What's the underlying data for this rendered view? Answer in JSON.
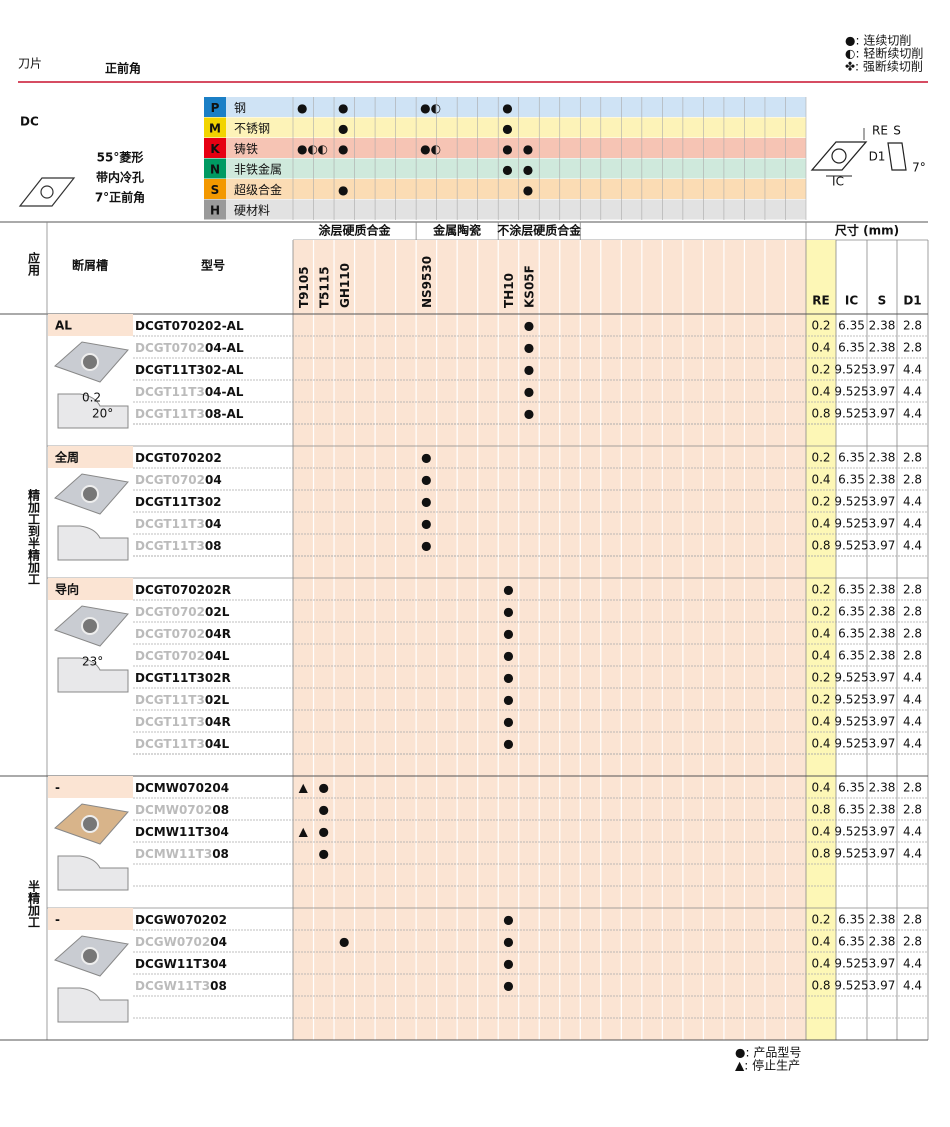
{
  "header": {
    "title": "刀片",
    "subtitle": "正前角",
    "legend": [
      "●: 连续切削",
      "◐: 轻断续切削",
      "✤: 强断续切削"
    ]
  },
  "product": {
    "code": "DC",
    "description": [
      "55°菱形",
      "带内冷孔",
      "7°正前角"
    ],
    "diagram_labels": [
      "RE",
      "S",
      "D1",
      "IC",
      "7°"
    ]
  },
  "grade_groups": [
    {
      "label": "涂层硬质合金",
      "columns": [
        "T9105",
        "T5115",
        "GH110",
        null,
        null,
        null
      ]
    },
    {
      "label": "金属陶瓷",
      "columns": [
        "NS9530",
        null,
        null,
        null
      ]
    },
    {
      "label": "不涂层硬质合金",
      "columns": [
        "TH10",
        "KS05F",
        null,
        null
      ]
    },
    {
      "columns": [
        null,
        null,
        null,
        null,
        null,
        null,
        null,
        null,
        null,
        null,
        null
      ]
    }
  ],
  "materials": [
    {
      "code": "P",
      "name": "钢",
      "color": "#1b7fc6",
      "bg": "#cfe3f5",
      "marks": {
        "T9105": "●",
        "GH110": "●",
        "NS9530": "●◐",
        "TH10": "●"
      }
    },
    {
      "code": "M",
      "name": "不锈钢",
      "color": "#f2d400",
      "bg": "#fdf3b8",
      "marks": {
        "GH110": "●",
        "TH10": "●"
      }
    },
    {
      "code": "K",
      "name": "铸铁",
      "color": "#e60012",
      "bg": "#f6c4b4",
      "marks": {
        "T9105": "●◐",
        "T5115": "◐",
        "GH110": "●",
        "NS9530": "●◐",
        "TH10": "●",
        "KS05F": "●"
      }
    },
    {
      "code": "N",
      "name": "非铁金属",
      "color": "#009a62",
      "bg": "#cfe9dc",
      "marks": {
        "TH10": "●",
        "KS05F": "●"
      }
    },
    {
      "code": "S",
      "name": "超级合金",
      "color": "#f39800",
      "bg": "#fbdcb4",
      "marks": {
        "GH110": "●",
        "KS05F": "●"
      }
    },
    {
      "code": "H",
      "name": "硬材料",
      "color": "#9a9a9a",
      "bg": "#e2e2e2",
      "marks": {}
    }
  ],
  "table": {
    "columns": {
      "application": "应用",
      "chipbreaker": "断屑槽",
      "model": "型号",
      "dimensions": "尺寸 (mm)",
      "dims": [
        "RE",
        "IC",
        "S",
        "D1"
      ]
    },
    "sections": [
      {
        "label": "精加工到半精加工",
        "groups": [
          {
            "chipbreaker": "AL",
            "figure_labels": [
              "0.2",
              "20°"
            ],
            "rows": [
              {
                "model": [
                  "DCGT070202-AL"
                ],
                "marks": {
                  "KS05F": "●"
                },
                "dims": [
                  0.2,
                  6.35,
                  2.38,
                  2.8
                ]
              },
              {
                "model": [
                  "DCGT0702",
                  "04-AL"
                ],
                "marks": {
                  "KS05F": "●"
                },
                "dims": [
                  0.4,
                  6.35,
                  2.38,
                  2.8
                ]
              },
              {
                "model": [
                  "DCGT11T302-AL"
                ],
                "marks": {
                  "KS05F": "●"
                },
                "dims": [
                  0.2,
                  9.525,
                  3.97,
                  4.4
                ]
              },
              {
                "model": [
                  "DCGT11T3",
                  "04-AL"
                ],
                "marks": {
                  "KS05F": "●"
                },
                "dims": [
                  0.4,
                  9.525,
                  3.97,
                  4.4
                ]
              },
              {
                "model": [
                  "DCGT11T3",
                  "08-AL"
                ],
                "marks": {
                  "KS05F": "●"
                },
                "dims": [
                  0.8,
                  9.525,
                  3.97,
                  4.4
                ]
              }
            ]
          },
          {
            "chipbreaker": "全周",
            "rows": [
              {
                "model": [
                  "DCGT070202"
                ],
                "marks": {
                  "NS9530": "●"
                },
                "dims": [
                  0.2,
                  6.35,
                  2.38,
                  2.8
                ]
              },
              {
                "model": [
                  "DCGT0702",
                  "04"
                ],
                "marks": {
                  "NS9530": "●"
                },
                "dims": [
                  0.4,
                  6.35,
                  2.38,
                  2.8
                ]
              },
              {
                "model": [
                  "DCGT11T302"
                ],
                "marks": {
                  "NS9530": "●"
                },
                "dims": [
                  0.2,
                  9.525,
                  3.97,
                  4.4
                ]
              },
              {
                "model": [
                  "DCGT11T3",
                  "04"
                ],
                "marks": {
                  "NS9530": "●"
                },
                "dims": [
                  0.4,
                  9.525,
                  3.97,
                  4.4
                ]
              },
              {
                "model": [
                  "DCGT11T3",
                  "08"
                ],
                "marks": {
                  "NS9530": "●"
                },
                "dims": [
                  0.8,
                  9.525,
                  3.97,
                  4.4
                ]
              }
            ]
          },
          {
            "chipbreaker": "导向",
            "figure_labels": [
              "23°"
            ],
            "rows": [
              {
                "model": [
                  "DCGT070202R"
                ],
                "marks": {
                  "TH10": "●"
                },
                "dims": [
                  0.2,
                  6.35,
                  2.38,
                  2.8
                ]
              },
              {
                "model": [
                  "DCGT0702",
                  "02L"
                ],
                "marks": {
                  "TH10": "●"
                },
                "dims": [
                  0.2,
                  6.35,
                  2.38,
                  2.8
                ]
              },
              {
                "model": [
                  "DCGT0702",
                  "04R"
                ],
                "marks": {
                  "TH10": "●"
                },
                "dims": [
                  0.4,
                  6.35,
                  2.38,
                  2.8
                ]
              },
              {
                "model": [
                  "DCGT0702",
                  "04L"
                ],
                "marks": {
                  "TH10": "●"
                },
                "dims": [
                  0.4,
                  6.35,
                  2.38,
                  2.8
                ]
              },
              {
                "model": [
                  "DCGT11T302R"
                ],
                "marks": {
                  "TH10": "●"
                },
                "dims": [
                  0.2,
                  9.525,
                  3.97,
                  4.4
                ]
              },
              {
                "model": [
                  "DCGT11T3",
                  "02L"
                ],
                "marks": {
                  "TH10": "●"
                },
                "dims": [
                  0.2,
                  9.525,
                  3.97,
                  4.4
                ]
              },
              {
                "model": [
                  "DCGT11T3",
                  "04R"
                ],
                "marks": {
                  "TH10": "●"
                },
                "dims": [
                  0.4,
                  9.525,
                  3.97,
                  4.4
                ]
              },
              {
                "model": [
                  "DCGT11T3",
                  "04L"
                ],
                "marks": {
                  "TH10": "●"
                },
                "dims": [
                  0.4,
                  9.525,
                  3.97,
                  4.4
                ]
              }
            ]
          }
        ]
      },
      {
        "label": "半精加工",
        "groups": [
          {
            "chipbreaker": "-",
            "rows": [
              {
                "model": [
                  "DCMW070204"
                ],
                "marks": {
                  "T9105": "▲",
                  "T5115": "●"
                },
                "dims": [
                  0.4,
                  6.35,
                  2.38,
                  2.8
                ]
              },
              {
                "model": [
                  "DCMW0702",
                  "08"
                ],
                "marks": {
                  "T5115": "●"
                },
                "dims": [
                  0.8,
                  6.35,
                  2.38,
                  2.8
                ]
              },
              {
                "model": [
                  "DCMW11T304"
                ],
                "marks": {
                  "T9105": "▲",
                  "T5115": "●"
                },
                "dims": [
                  0.4,
                  9.525,
                  3.97,
                  4.4
                ]
              },
              {
                "model": [
                  "DCMW11T3",
                  "08"
                ],
                "marks": {
                  "T5115": "●"
                },
                "dims": [
                  0.8,
                  9.525,
                  3.97,
                  4.4
                ]
              }
            ]
          },
          {
            "chipbreaker": "-",
            "rows": [
              {
                "model": [
                  "DCGW070202"
                ],
                "marks": {
                  "TH10": "●"
                },
                "dims": [
                  0.2,
                  6.35,
                  2.38,
                  2.8
                ]
              },
              {
                "model": [
                  "DCGW0702",
                  "04"
                ],
                "marks": {
                  "GH110": "●",
                  "TH10": "●"
                },
                "dims": [
                  0.4,
                  6.35,
                  2.38,
                  2.8
                ]
              },
              {
                "model": [
                  "DCGW11T304"
                ],
                "marks": {
                  "TH10": "●"
                },
                "dims": [
                  0.4,
                  9.525,
                  3.97,
                  4.4
                ]
              },
              {
                "model": [
                  "DCGW11T3",
                  "08"
                ],
                "marks": {
                  "TH10": "●"
                },
                "dims": [
                  0.8,
                  9.525,
                  3.97,
                  4.4
                ]
              }
            ]
          }
        ]
      }
    ]
  },
  "footer": {
    "legend": [
      "●: 产品型号",
      "▲: 停止生产"
    ]
  }
}
